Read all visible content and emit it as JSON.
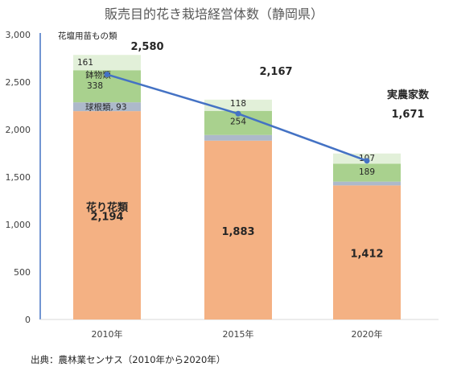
{
  "chart_data": {
    "type": "bar",
    "stacked": true,
    "title": "販売目的花き栽培経営体数（静岡県）",
    "categories": [
      "2010年",
      "2015年",
      "2020年"
    ],
    "series": [
      {
        "name": "花り花類",
        "values": [
          2194,
          1883,
          1412
        ],
        "color": "#F4B183"
      },
      {
        "name": "球根類",
        "values": [
          93,
          60,
          40
        ],
        "color": "#ADB9CA"
      },
      {
        "name": "鉢物類",
        "values": [
          338,
          254,
          189
        ],
        "color": "#A9D18E"
      },
      {
        "name": "花壇用苗もの類",
        "values": [
          161,
          118,
          107
        ],
        "color": "#E2F0D9"
      }
    ],
    "line_series": {
      "name": "実農家数",
      "values": [
        2580,
        2167,
        1671
      ],
      "color": "#4472C4"
    },
    "data_labels": {
      "花り花類": [
        "2,194",
        "1,883",
        "1,412"
      ],
      "球根類": [
        "93",
        "",
        ""
      ],
      "鉢物類": [
        "338",
        "254",
        "189"
      ],
      "花壇用苗もの類": [
        "161",
        "118",
        "107"
      ],
      "実農家数": [
        "2,580",
        "2,167",
        "1,671"
      ]
    },
    "series_labels": {
      "cut_flowers": "花り花類",
      "bulbs": "球根類",
      "bulbs_combined": "球根類, 93",
      "potted": "鉢物類",
      "bedding": "花壇用苗もの類",
      "farm_count": "実農家数"
    },
    "y_ticks": [
      "0",
      "500",
      "1,000",
      "1,500",
      "2,000",
      "2,500",
      "3,000"
    ],
    "ylim": [
      0,
      3000
    ],
    "grid": false,
    "legend": "none",
    "source_note": "出典：農林業センサス（2010年から2020年）"
  }
}
